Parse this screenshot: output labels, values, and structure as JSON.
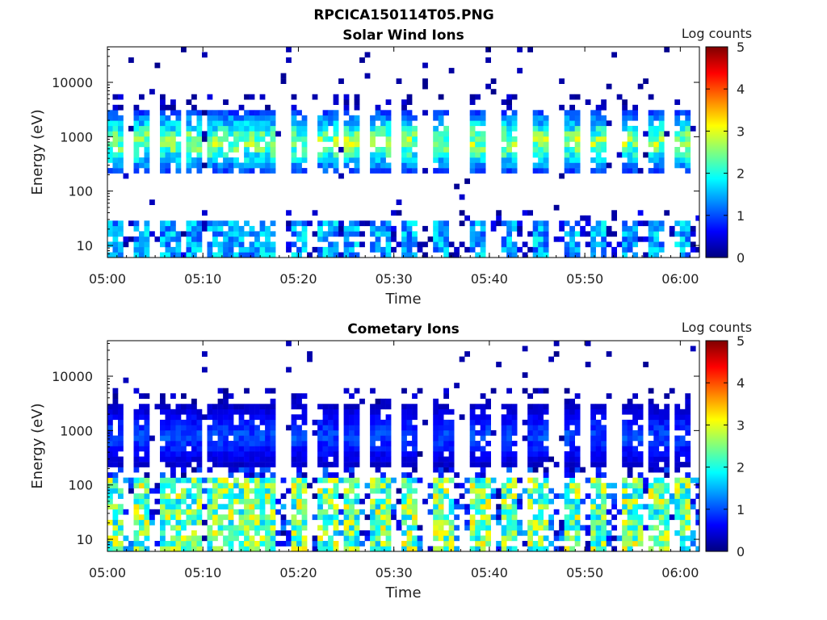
{
  "figure": {
    "filename": "RPCICA150114T05.PNG"
  },
  "colormap": {
    "name": "jet",
    "stops": [
      "#00007f",
      "#0000ff",
      "#007fff",
      "#00ffff",
      "#7fff7f",
      "#ffff00",
      "#ff7f00",
      "#ff0000",
      "#7f0000"
    ]
  },
  "chart_data": [
    {
      "type": "heatmap",
      "title": "Solar Wind Ions",
      "xlabel": "Time",
      "ylabel": "Energy (eV)",
      "x_ticks": [
        "05:00",
        "05:10",
        "05:20",
        "05:30",
        "05:40",
        "05:50",
        "06:00"
      ],
      "x_range": [
        "05:00",
        "06:02"
      ],
      "y_scale": "log",
      "y_ticks": [
        "10",
        "100",
        "1000",
        "10000"
      ],
      "y_range": [
        6,
        45000
      ],
      "colorbar_label": "Log counts",
      "colorbar_ticks": [
        "0",
        "1",
        "2",
        "3",
        "4",
        "5"
      ],
      "color_range": [
        0,
        5
      ],
      "bursts_minutes": [
        0.4,
        3.2,
        6.3,
        8.6,
        11.3,
        12.6,
        14.6,
        16.4,
        19.8,
        22.8,
        25.3,
        28.3,
        31.3,
        34.8,
        38.6,
        41.8,
        44.9,
        48.3,
        51.2,
        54.6,
        57.3,
        59.9
      ],
      "beam_energy_eV": 800,
      "beam_peak_log_counts": 2.7,
      "low_energy_band_eV": [
        6,
        30
      ],
      "low_energy_peak_log_counts": 1.8
    },
    {
      "type": "heatmap",
      "title": "Cometary Ions",
      "xlabel": "Time",
      "ylabel": "Energy (eV)",
      "x_ticks": [
        "05:00",
        "05:10",
        "05:20",
        "05:30",
        "05:40",
        "05:50",
        "06:00"
      ],
      "x_range": [
        "05:00",
        "06:02"
      ],
      "y_scale": "log",
      "y_ticks": [
        "10",
        "100",
        "1000",
        "10000"
      ],
      "y_range": [
        6,
        45000
      ],
      "colorbar_label": "Log counts",
      "colorbar_ticks": [
        "0",
        "1",
        "2",
        "3",
        "4",
        "5"
      ],
      "color_range": [
        0,
        5
      ],
      "bursts_minutes": [
        0.4,
        3.2,
        6.3,
        8.6,
        11.3,
        12.6,
        14.6,
        16.4,
        19.8,
        22.8,
        25.3,
        28.3,
        31.3,
        34.8,
        38.6,
        41.8,
        44.9,
        48.3,
        51.2,
        54.6,
        57.3,
        59.9
      ],
      "beam_energy_eV": 800,
      "beam_peak_log_counts": 1.0,
      "low_energy_band_eV": [
        6,
        150
      ],
      "low_energy_peak_log_counts": 3.0
    }
  ]
}
